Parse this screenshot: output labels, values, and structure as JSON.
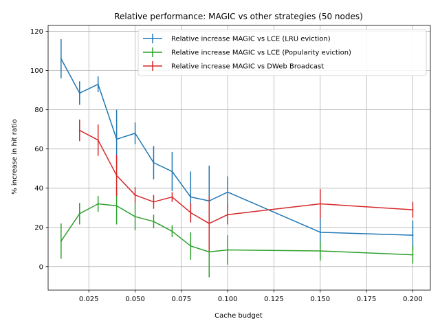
{
  "chart_data": {
    "type": "line",
    "title": "Relative performance: MAGIC vs other strategies (50 nodes)",
    "xlabel": "Cache budget",
    "ylabel": "% increase in hit ratio",
    "xlim": [
      0.003,
      0.2095
    ],
    "ylim": [
      -12,
      123
    ],
    "xticks": [
      0.025,
      0.05,
      0.075,
      0.1,
      0.125,
      0.15,
      0.175,
      0.2
    ],
    "xtick_labels": [
      "0.025",
      "0.050",
      "0.075",
      "0.100",
      "0.125",
      "0.150",
      "0.175",
      "0.200"
    ],
    "yticks": [
      0,
      20,
      40,
      60,
      80,
      100,
      120
    ],
    "ytick_labels": [
      "0",
      "20",
      "40",
      "60",
      "80",
      "100",
      "120"
    ],
    "grid": true,
    "legend_position": "top-right",
    "series": [
      {
        "name": "Relative increase MAGIC vs LCE (LRU eviction)",
        "color": "#1f77b4",
        "x": [
          0.01,
          0.02,
          0.03,
          0.04,
          0.05,
          0.06,
          0.07,
          0.08,
          0.09,
          0.1,
          0.15,
          0.2
        ],
        "y": [
          106,
          88.5,
          93,
          65,
          68,
          53,
          48.5,
          35.5,
          33.5,
          38,
          17.5,
          16
        ],
        "err": [
          10,
          6,
          4,
          15,
          5.5,
          8.5,
          10,
          13,
          18,
          8,
          7.5,
          7.5
        ]
      },
      {
        "name": "Relative increase MAGIC vs LCE (Popularity eviction)",
        "color": "#2ca02c",
        "x": [
          0.01,
          0.02,
          0.03,
          0.04,
          0.05,
          0.06,
          0.07,
          0.08,
          0.09,
          0.1,
          0.15,
          0.2
        ],
        "y": [
          13,
          27,
          32,
          31,
          25.5,
          23,
          18,
          10.5,
          7.5,
          8.5,
          8,
          6
        ],
        "err": [
          9,
          5.5,
          4,
          9.5,
          7,
          3.5,
          3,
          7,
          13,
          7.5,
          5,
          4.5
        ]
      },
      {
        "name": "Relative increase MAGIC vs DWeb Broadcast",
        "color": "#d62728",
        "x": [
          0.02,
          0.03,
          0.04,
          0.05,
          0.06,
          0.07,
          0.08,
          0.09,
          0.1,
          0.15,
          0.2
        ],
        "y": [
          69.5,
          64.5,
          46.5,
          36.5,
          33,
          35.5,
          27.5,
          22,
          26.5,
          32,
          29
        ],
        "err": [
          5.5,
          8,
          10.5,
          4,
          3.5,
          2.5,
          5,
          14,
          5,
          7.5,
          4
        ]
      }
    ]
  }
}
